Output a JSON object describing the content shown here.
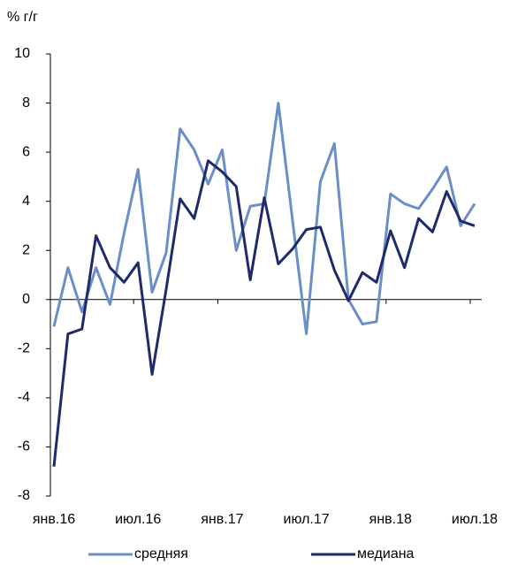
{
  "chart_data": {
    "type": "line",
    "y_label": "% г/г",
    "categories": [
      "янв.16",
      null,
      null,
      null,
      null,
      null,
      "июл.16",
      null,
      null,
      null,
      null,
      null,
      "янв.17",
      null,
      null,
      null,
      null,
      null,
      "июл.17",
      null,
      null,
      null,
      null,
      null,
      "янв.18",
      null,
      null,
      null,
      null,
      null,
      "июл.18"
    ],
    "series": [
      {
        "name": "средняя",
        "color": "#6a8fc7",
        "values": [
          -1.1,
          1.3,
          -0.5,
          1.3,
          -0.2,
          2.7,
          5.3,
          0.3,
          1.9,
          6.95,
          6.1,
          4.7,
          6.1,
          2.0,
          3.8,
          3.9,
          8.0,
          3.3,
          -1.4,
          4.8,
          6.35,
          0.0,
          -1.0,
          -0.9,
          4.3,
          3.9,
          3.7,
          4.5,
          5.4,
          3.0,
          3.9
        ]
      },
      {
        "name": "медиана",
        "color": "#1f2a6b",
        "values": [
          -6.8,
          -1.4,
          -1.2,
          2.6,
          1.3,
          0.7,
          1.5,
          -3.05,
          0.4,
          4.1,
          3.3,
          5.65,
          5.2,
          4.6,
          0.8,
          4.15,
          1.45,
          2.05,
          2.85,
          2.95,
          1.2,
          -0.05,
          1.1,
          0.7,
          2.8,
          1.3,
          3.3,
          2.75,
          4.4,
          3.2,
          3.0
        ]
      }
    ],
    "ylim": [
      -8,
      10
    ],
    "yticks": [
      -8,
      -6,
      -4,
      -2,
      0,
      2,
      4,
      6,
      8,
      10
    ],
    "legend": "bottom"
  }
}
